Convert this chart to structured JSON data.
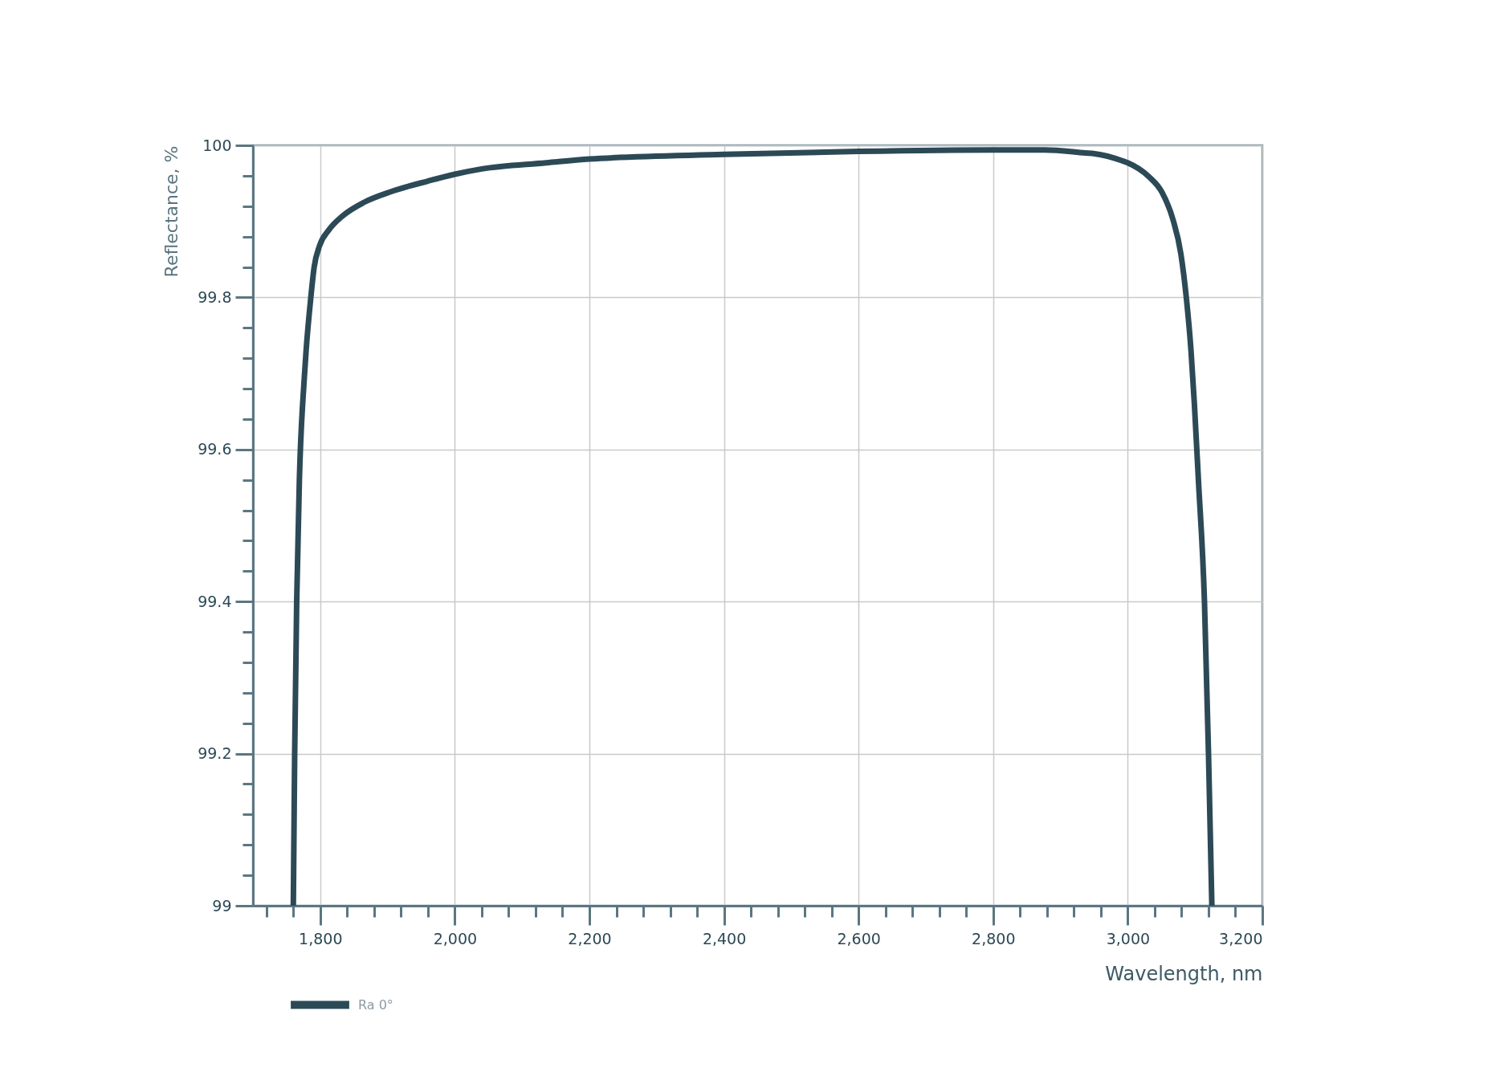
{
  "chart_data": {
    "type": "line",
    "xlabel": "Wavelength, nm",
    "ylabel": "Reflectance, %",
    "x": [
      1760,
      1762,
      1765,
      1769,
      1776,
      1779,
      1786,
      1791,
      1799,
      1813,
      1833,
      1865,
      1905,
      1960,
      2000,
      2040,
      2136,
      2200,
      2400,
      2600,
      2800,
      2877,
      2937,
      2951,
      2991,
      3000,
      3031,
      3051,
      3067,
      3079,
      3087,
      3094,
      3099,
      3105,
      3114,
      3120,
      3125
    ],
    "series": [
      {
        "name": "Ra 0°",
        "color": "#2c4956",
        "values": [
          99.0,
          99.2,
          99.4,
          99.56,
          99.69,
          99.73,
          99.8,
          99.84,
          99.868,
          99.889,
          99.907,
          99.925,
          99.939,
          99.953,
          99.962,
          99.969,
          99.977,
          99.982,
          99.988,
          99.992,
          99.994,
          99.994,
          99.99,
          99.989,
          99.98,
          99.977,
          99.959,
          99.938,
          99.903,
          99.857,
          99.8,
          99.73,
          99.66,
          99.56,
          99.4,
          99.2,
          99.0
        ]
      }
    ],
    "xlim": [
      1700,
      3200
    ],
    "ylim": [
      99,
      100
    ],
    "xticks": [
      {
        "value": 1720,
        "label": null
      },
      {
        "value": 1760,
        "label": null
      },
      {
        "value": 1800,
        "label": "1,800"
      },
      {
        "value": 1840,
        "label": null
      },
      {
        "value": 1880,
        "label": null
      },
      {
        "value": 1920,
        "label": null
      },
      {
        "value": 1960,
        "label": null
      },
      {
        "value": 2000,
        "label": "2,000"
      },
      {
        "value": 2040,
        "label": null
      },
      {
        "value": 2080,
        "label": null
      },
      {
        "value": 2120,
        "label": null
      },
      {
        "value": 2160,
        "label": null
      },
      {
        "value": 2200,
        "label": "2,200"
      },
      {
        "value": 2240,
        "label": null
      },
      {
        "value": 2280,
        "label": null
      },
      {
        "value": 2320,
        "label": null
      },
      {
        "value": 2360,
        "label": null
      },
      {
        "value": 2400,
        "label": "2,400"
      },
      {
        "value": 2440,
        "label": null
      },
      {
        "value": 2480,
        "label": null
      },
      {
        "value": 2520,
        "label": null
      },
      {
        "value": 2560,
        "label": null
      },
      {
        "value": 2600,
        "label": "2,600"
      },
      {
        "value": 2640,
        "label": null
      },
      {
        "value": 2680,
        "label": null
      },
      {
        "value": 2720,
        "label": null
      },
      {
        "value": 2760,
        "label": null
      },
      {
        "value": 2800,
        "label": "2,800"
      },
      {
        "value": 2840,
        "label": null
      },
      {
        "value": 2880,
        "label": null
      },
      {
        "value": 2920,
        "label": null
      },
      {
        "value": 2960,
        "label": null
      },
      {
        "value": 3000,
        "label": "3,000"
      },
      {
        "value": 3040,
        "label": null
      },
      {
        "value": 3080,
        "label": null
      },
      {
        "value": 3120,
        "label": null
      },
      {
        "value": 3160,
        "label": null
      },
      {
        "value": 3200,
        "label": "3,200"
      }
    ],
    "yticks": [
      99,
      {
        "value": 99.04,
        "label": null
      },
      {
        "value": 99.08,
        "label": null
      },
      {
        "value": 99.12,
        "label": null
      },
      {
        "value": 99.16,
        "label": null
      },
      99.2,
      {
        "value": 99.24,
        "label": null
      },
      {
        "value": 99.28,
        "label": null
      },
      {
        "value": 99.32,
        "label": null
      },
      {
        "value": 99.36,
        "label": null
      },
      99.4,
      {
        "value": 99.44,
        "label": null
      },
      {
        "value": 99.48,
        "label": null
      },
      {
        "value": 99.52,
        "label": null
      },
      {
        "value": 99.56,
        "label": null
      },
      99.6,
      {
        "value": 99.64,
        "label": null
      },
      {
        "value": 99.68,
        "label": null
      },
      {
        "value": 99.72,
        "label": null
      },
      {
        "value": 99.76,
        "label": null
      },
      99.8,
      {
        "value": 99.84,
        "label": null
      },
      {
        "value": 99.88,
        "label": null
      },
      {
        "value": 99.92,
        "label": null
      },
      {
        "value": 99.96,
        "label": null
      },
      100
    ],
    "grid": true,
    "legend": "bottom left",
    "line_style": "solid"
  }
}
